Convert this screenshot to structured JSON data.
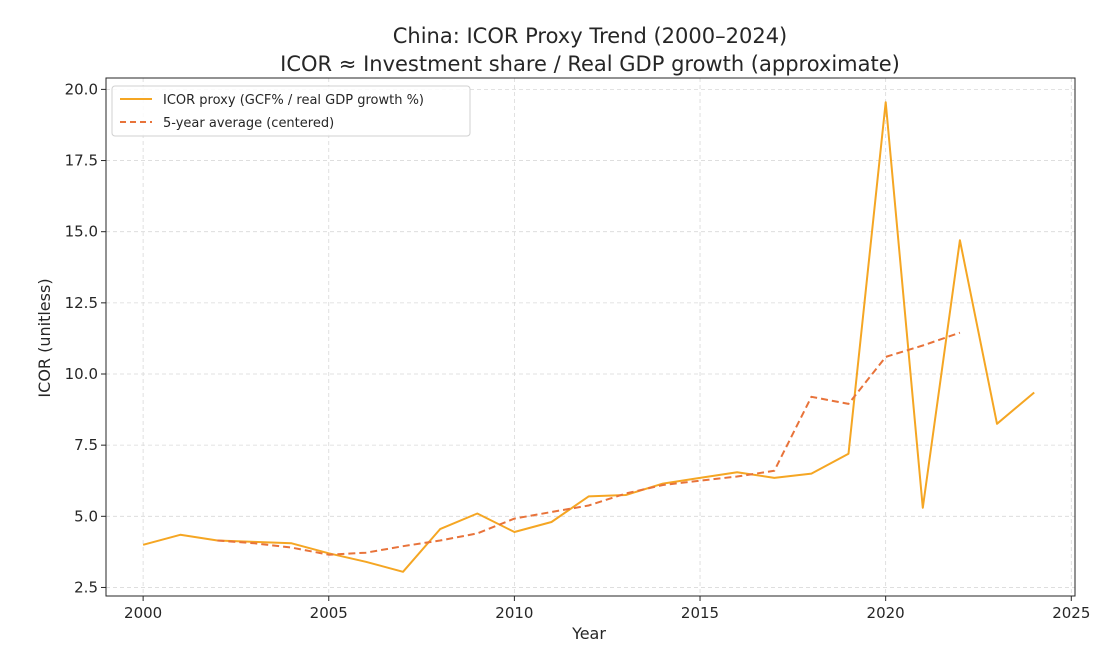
{
  "chart_data": {
    "type": "line",
    "title": "China: ICOR Proxy Trend (2000–2024)",
    "subtitle": "ICOR ≈ Investment share / Real GDP growth (approximate)",
    "xlabel": "Year",
    "ylabel": "ICOR (unitless)",
    "xlim": [
      1999,
      2025.1
    ],
    "ylim": [
      2.2,
      20.4
    ],
    "xticks": [
      2000,
      2005,
      2010,
      2015,
      2020,
      2025
    ],
    "xtick_labels": [
      "2000",
      "2005",
      "2010",
      "2015",
      "2020",
      "2025"
    ],
    "yticks": [
      2.5,
      5.0,
      7.5,
      10.0,
      12.5,
      15.0,
      17.5,
      20.0
    ],
    "ytick_labels": [
      "2.5",
      "5.0",
      "7.5",
      "10.0",
      "12.5",
      "15.0",
      "17.5",
      "20.0"
    ],
    "grid": true,
    "legend_position": "top-left",
    "series": [
      {
        "name": "ICOR proxy (GCF% / real GDP growth %)",
        "color": "#F5A623",
        "style": "solid",
        "x": [
          2000,
          2001,
          2002,
          2003,
          2004,
          2005,
          2006,
          2007,
          2008,
          2009,
          2010,
          2011,
          2012,
          2013,
          2014,
          2015,
          2016,
          2017,
          2018,
          2019,
          2020,
          2021,
          2022,
          2023,
          2024
        ],
        "values": [
          4.0,
          4.35,
          4.15,
          4.1,
          4.05,
          3.7,
          3.4,
          3.05,
          4.55,
          5.1,
          4.45,
          4.8,
          5.7,
          5.75,
          6.15,
          6.35,
          6.55,
          6.35,
          6.5,
          7.2,
          19.55,
          5.3,
          14.7,
          8.25,
          9.35
        ]
      },
      {
        "name": "5-year average (centered)",
        "color": "#E8733A",
        "style": "dashed",
        "x": [
          2002,
          2003,
          2004,
          2005,
          2006,
          2007,
          2008,
          2009,
          2010,
          2011,
          2012,
          2013,
          2014,
          2015,
          2016,
          2017,
          2018,
          2019,
          2020,
          2021,
          2022
        ],
        "values": [
          4.15,
          4.05,
          3.9,
          3.65,
          3.72,
          3.95,
          4.15,
          4.4,
          4.92,
          5.15,
          5.38,
          5.8,
          6.1,
          6.25,
          6.4,
          6.6,
          9.2,
          8.95,
          10.6,
          11.0,
          11.45
        ]
      }
    ]
  }
}
